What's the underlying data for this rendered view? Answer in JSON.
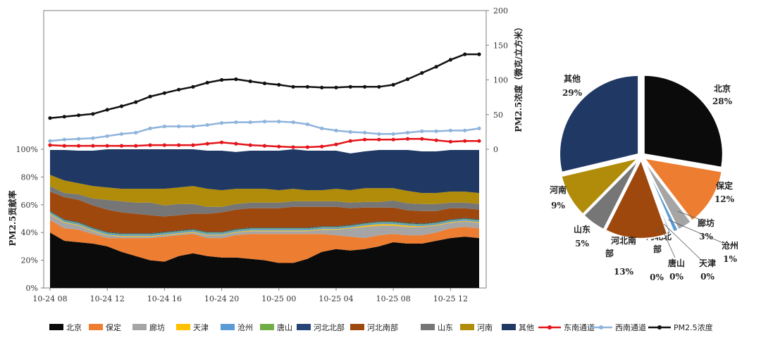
{
  "colors": {
    "北京": "#0b0b0b",
    "保定": "#ed7d31",
    "廊坊": "#a5a5a5",
    "天津": "#ffc000",
    "沧州": "#5b9bd5",
    "唐山": "#70ad47",
    "河北北部": "#264478",
    "河北南部": "#9e480e",
    "山东": "#767676",
    "河南": "#b08c0a",
    "其他": "#203864",
    "东南通道": "#e3141a",
    "西南通道": "#8fb4dc",
    "PM2.5浓度": "#111111"
  },
  "chart_data": [
    {
      "type": "line",
      "x_ticks": [
        "10-24 08",
        "10-24 12",
        "10-24 16",
        "10-24 20",
        "10-25 00",
        "10-25 04",
        "10-25 08",
        "10-25 12"
      ],
      "x_hours_first": 8,
      "ylabel_right": "PM2.5浓度（微克/立方米）",
      "ylim_right": [
        0,
        200
      ],
      "yticks_right": [
        "0",
        "50",
        "100",
        "150",
        "200"
      ],
      "series": [
        {
          "name": "PM2.5浓度",
          "values": [
            45,
            47,
            49,
            51,
            57,
            62,
            68,
            76,
            81,
            86,
            90,
            96,
            100,
            101,
            98,
            95,
            93,
            90,
            90,
            89,
            89,
            90,
            90,
            90,
            93,
            101,
            110,
            119,
            129,
            137,
            137
          ]
        },
        {
          "name": "西南通道",
          "values": [
            12,
            14,
            15,
            16,
            19,
            22,
            24,
            30,
            33,
            33,
            33,
            35,
            38,
            39,
            39,
            40,
            40,
            39,
            36,
            30,
            27,
            25,
            24,
            22,
            22,
            24,
            26,
            26,
            27,
            27,
            30
          ]
        },
        {
          "name": "东南通道",
          "values": [
            6,
            5,
            5,
            5,
            5,
            5,
            5,
            6,
            6,
            6,
            6,
            8,
            10,
            8,
            6,
            5,
            4,
            3,
            3,
            4,
            7,
            12,
            14,
            14,
            14,
            15,
            15,
            13,
            11,
            12,
            12
          ]
        }
      ]
    },
    {
      "type": "area",
      "stacked": true,
      "ylabel": "PM2.5贡献率",
      "ylim": [
        0,
        100
      ],
      "yticks": [
        "0%",
        "20%",
        "40%",
        "60%",
        "80%",
        "100%"
      ],
      "x_ticks": [
        "10-24 08",
        "10-24 12",
        "10-24 16",
        "10-24 20",
        "10-25 00",
        "10-25 04",
        "10-25 08",
        "10-25 12"
      ],
      "series": [
        {
          "name": "北京",
          "values": [
            40,
            34,
            33,
            32,
            30,
            26,
            23,
            20,
            19,
            23,
            25,
            23,
            22,
            22,
            21,
            20,
            18,
            18,
            21,
            26,
            28,
            27,
            28,
            30,
            33,
            32,
            32,
            34,
            36,
            37,
            36
          ]
        },
        {
          "name": "保定",
          "values": [
            9,
            9,
            9,
            7,
            6,
            10,
            13,
            16,
            18,
            15,
            14,
            13,
            14,
            16,
            18,
            19,
            21,
            21,
            18,
            13,
            10,
            10,
            8,
            8,
            6,
            6,
            6,
            6,
            7,
            7,
            7
          ]
        },
        {
          "name": "廊坊",
          "values": [
            4,
            4,
            3,
            2,
            2,
            1,
            1,
            1,
            1,
            1,
            1,
            2,
            2,
            2,
            2,
            2,
            2,
            2,
            2,
            3,
            4,
            6,
            8,
            7,
            6,
            6,
            6,
            5,
            4,
            4,
            4
          ]
        },
        {
          "name": "天津",
          "values": [
            0.5,
            0.5,
            0.5,
            0.5,
            0.5,
            0.5,
            0.5,
            0.5,
            0.5,
            0.5,
            0.5,
            0.5,
            0.5,
            0.5,
            0.5,
            0.5,
            0.5,
            0.5,
            0.5,
            0.5,
            0.5,
            0.5,
            1,
            1,
            1,
            1,
            0.5,
            0.5,
            0.5,
            0.5,
            0.5
          ]
        },
        {
          "name": "沧州",
          "values": [
            1,
            1,
            1,
            1,
            1,
            1,
            1,
            1,
            1,
            1,
            1,
            1,
            1,
            1,
            1,
            1,
            1,
            1,
            1,
            1,
            1,
            1,
            1,
            1,
            1,
            1,
            1,
            1,
            1,
            1,
            1
          ]
        },
        {
          "name": "唐山",
          "values": [
            0.5,
            0.5,
            0.5,
            0.5,
            0.5,
            0.5,
            0.5,
            0.5,
            0.5,
            0.5,
            0.5,
            0.5,
            0.5,
            0.5,
            0.5,
            0.5,
            0.5,
            0.5,
            0.5,
            0.5,
            0.5,
            0.5,
            0.5,
            0.5,
            0.5,
            0.5,
            0.5,
            0.5,
            0.5,
            0.5,
            0.5
          ]
        },
        {
          "name": "河北北部",
          "values": [
            0.5,
            0.5,
            0.5,
            0.5,
            0.5,
            0.5,
            0.5,
            0.5,
            0.5,
            0.5,
            0.5,
            0.5,
            0.5,
            0.5,
            0.5,
            0.5,
            0.5,
            0.5,
            0.5,
            0.5,
            0.5,
            0.5,
            0.5,
            0.5,
            0.5,
            0.5,
            0.5,
            0.5,
            0.5,
            0.5,
            0.5
          ]
        },
        {
          "name": "河北南部",
          "values": [
            14,
            16,
            16,
            16,
            16,
            15,
            14,
            13,
            11,
            11,
            11,
            13,
            14,
            14,
            14,
            14,
            14,
            15,
            15,
            14,
            14,
            12,
            11,
            10,
            10,
            9,
            9,
            8,
            8,
            7,
            7
          ]
        },
        {
          "name": "山东",
          "values": [
            4,
            3,
            4,
            5,
            7,
            8,
            8,
            9,
            8,
            8,
            7,
            5,
            4,
            4,
            4,
            4,
            4,
            4,
            4,
            4,
            4,
            4,
            4,
            4,
            5,
            5,
            5,
            5,
            4,
            4,
            4
          ]
        },
        {
          "name": "河南",
          "values": [
            8,
            9,
            8,
            9,
            9,
            9,
            10,
            10,
            12,
            12,
            13,
            13,
            12,
            11,
            10,
            10,
            9,
            9,
            8,
            8,
            9,
            9,
            10,
            10,
            9,
            9,
            8,
            8,
            8,
            8,
            8
          ]
        },
        {
          "name": "其他",
          "values": [
            18,
            22,
            23.5,
            25.5,
            27.5,
            28.5,
            28.5,
            28.5,
            28.5,
            27.5,
            26.5,
            27.5,
            28.5,
            26.5,
            27.5,
            27.5,
            28.5,
            28.5,
            28.5,
            28.5,
            27.5,
            26.5,
            26.5,
            27.5,
            27.5,
            29.5,
            30,
            30,
            30,
            30,
            31
          ]
        }
      ]
    },
    {
      "type": "pie",
      "slices": [
        {
          "label": "北京",
          "value": 28,
          "text": "28%"
        },
        {
          "label": "保定",
          "value": 12,
          "text": "12%"
        },
        {
          "label": "廊坊",
          "value": 3,
          "text": "3%"
        },
        {
          "label": "沧州",
          "value": 1,
          "text": "1%"
        },
        {
          "label": "天津",
          "value": 0.3,
          "text": "0%"
        },
        {
          "label": "唐山",
          "value": 0.3,
          "text": "0%"
        },
        {
          "label": "河北北部",
          "value": 0.4,
          "text": "0%"
        },
        {
          "label": "河北南部",
          "value": 13,
          "text": "13%"
        },
        {
          "label": "山东",
          "value": 5,
          "text": "5%"
        },
        {
          "label": "河南",
          "value": 9,
          "text": "9%"
        },
        {
          "label": "其他",
          "value": 29,
          "text": "29%"
        }
      ]
    }
  ],
  "legend": {
    "items": [
      {
        "name": "北京",
        "kind": "box"
      },
      {
        "name": "保定",
        "kind": "box"
      },
      {
        "name": "廊坊",
        "kind": "box"
      },
      {
        "name": "天津",
        "kind": "box"
      },
      {
        "name": "沧州",
        "kind": "box"
      },
      {
        "name": "唐山",
        "kind": "box"
      },
      {
        "name": "河北北部",
        "kind": "box"
      },
      {
        "name": "河北南部",
        "kind": "box"
      },
      {
        "name": "山东",
        "kind": "box"
      },
      {
        "name": "河南",
        "kind": "box"
      },
      {
        "name": "其他",
        "kind": "box"
      },
      {
        "name": "东南通道",
        "kind": "line"
      },
      {
        "name": "西南通道",
        "kind": "line"
      },
      {
        "name": "PM2.5浓度",
        "kind": "line"
      }
    ]
  }
}
